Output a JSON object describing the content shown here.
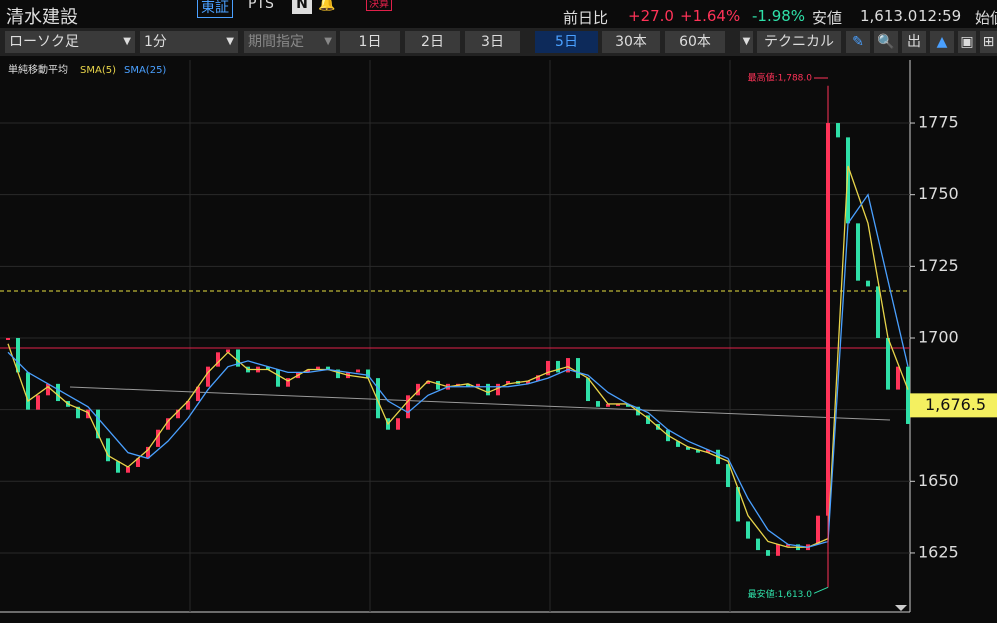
{
  "header": {
    "name": "清水建設",
    "market": "東証",
    "pts": "PTS",
    "settlement": "決算",
    "change_label": "前日比",
    "change": "+27.0",
    "change_pct": "+1.64%",
    "change_pct2": "-1.98%",
    "low_label": "安値",
    "low": "1,613.0",
    "time": "12:59",
    "open_label": "始値"
  },
  "toolbar": {
    "chart_kind": "ローソク足",
    "interval": "1分",
    "period": "期間指定",
    "ranges": [
      "1日",
      "2日",
      "3日",
      "5日",
      "30本",
      "60本"
    ],
    "active_range": 3,
    "technical": "テクニカル"
  },
  "chart_data": {
    "type": "candlestick-line",
    "legend_title": "単純移動平均",
    "up_color": "#ff3358",
    "down_color": "#2fe0a8",
    "xlim": [
      0,
      90
    ],
    "xgrid": [
      18.2,
      36.2,
      54.2,
      72.2
    ],
    "ylim": [
      1604.4,
      1794.2
    ],
    "yticks": [
      1625,
      1650,
      1675,
      1700,
      1725,
      1750,
      1775
    ],
    "grid": true,
    "values": [
      1700,
      1688,
      1675,
      1680,
      1684,
      1678,
      1676,
      1672,
      1675,
      1665,
      1657,
      1653,
      1655,
      1658,
      1662,
      1668,
      1672,
      1675,
      1678,
      1683,
      1690,
      1695,
      1696,
      1690,
      1688,
      1690,
      1689,
      1683,
      1686,
      1688,
      1689,
      1690,
      1689,
      1686,
      1688,
      1689,
      1686,
      1672,
      1668,
      1672,
      1680,
      1684,
      1685,
      1682,
      1684,
      1684,
      1683,
      1684,
      1680,
      1684,
      1685,
      1684,
      1685,
      1687,
      1692,
      1688,
      1693,
      1686,
      1678,
      1676,
      1677,
      1677,
      1676,
      1673,
      1670,
      1668,
      1664,
      1662,
      1661,
      1660,
      1661,
      1656,
      1648,
      1636,
      1630,
      1626,
      1624,
      1628,
      1628,
      1626,
      1628,
      1638,
      1775,
      1770,
      1740,
      1720,
      1718,
      1700,
      1682,
      1690,
      1670
    ],
    "series": [
      {
        "name": "SMA(5)",
        "color": "#e8d44a",
        "x": [
          0,
          2,
          4,
          6,
          8,
          10,
          12,
          14,
          16,
          18,
          20,
          22,
          24,
          26,
          28,
          30,
          32,
          34,
          36,
          38,
          40,
          42,
          44,
          46,
          48,
          50,
          52,
          54,
          56,
          58,
          60,
          62,
          64,
          66,
          68,
          70,
          72,
          74,
          76,
          78,
          80,
          82,
          84,
          86,
          88,
          90
        ],
        "values": [
          1698,
          1678,
          1683,
          1677,
          1674,
          1659,
          1655,
          1661,
          1671,
          1678,
          1688,
          1695,
          1689,
          1689,
          1685,
          1689,
          1689,
          1687,
          1686,
          1670,
          1678,
          1685,
          1683,
          1684,
          1681,
          1684,
          1685,
          1688,
          1690,
          1686,
          1677,
          1677,
          1672,
          1666,
          1662,
          1660,
          1657,
          1638,
          1629,
          1627,
          1627,
          1630,
          1760,
          1740,
          1700,
          1682
        ]
      },
      {
        "name": "SMA(25)",
        "color": "#4aa0ff",
        "x": [
          0,
          2,
          4,
          6,
          8,
          10,
          12,
          14,
          16,
          18,
          20,
          22,
          24,
          26,
          28,
          30,
          32,
          34,
          36,
          38,
          40,
          42,
          44,
          46,
          48,
          50,
          52,
          54,
          56,
          58,
          60,
          62,
          64,
          66,
          68,
          70,
          72,
          74,
          76,
          78,
          80,
          82,
          84,
          86,
          88,
          90
        ],
        "values": [
          1695,
          1688,
          1684,
          1680,
          1676,
          1668,
          1660,
          1658,
          1664,
          1672,
          1682,
          1690,
          1692,
          1690,
          1688,
          1688,
          1689,
          1688,
          1687,
          1678,
          1674,
          1680,
          1683,
          1683,
          1683,
          1683,
          1684,
          1686,
          1689,
          1687,
          1681,
          1677,
          1674,
          1668,
          1664,
          1661,
          1658,
          1644,
          1633,
          1628,
          1627,
          1629,
          1740,
          1750,
          1720,
          1690
        ]
      }
    ],
    "hlines": [
      {
        "value": 1696.5,
        "color": "#e0204a",
        "dashed": false
      },
      {
        "value": 1716.4,
        "color": "#e8e040",
        "dashed": true
      }
    ],
    "trendline": {
      "x": [
        6.2,
        88.2
      ],
      "values": [
        1682.9,
        1671.4
      ],
      "color": "#9a9a9a"
    },
    "high": {
      "x": 82,
      "value": 1788,
      "label": "最高値:1,788.0"
    },
    "low": {
      "x": 82,
      "value": 1613,
      "label": "最安値:1,613.0"
    },
    "last_price": {
      "value": 1676.5,
      "label": "1,676.5"
    }
  }
}
